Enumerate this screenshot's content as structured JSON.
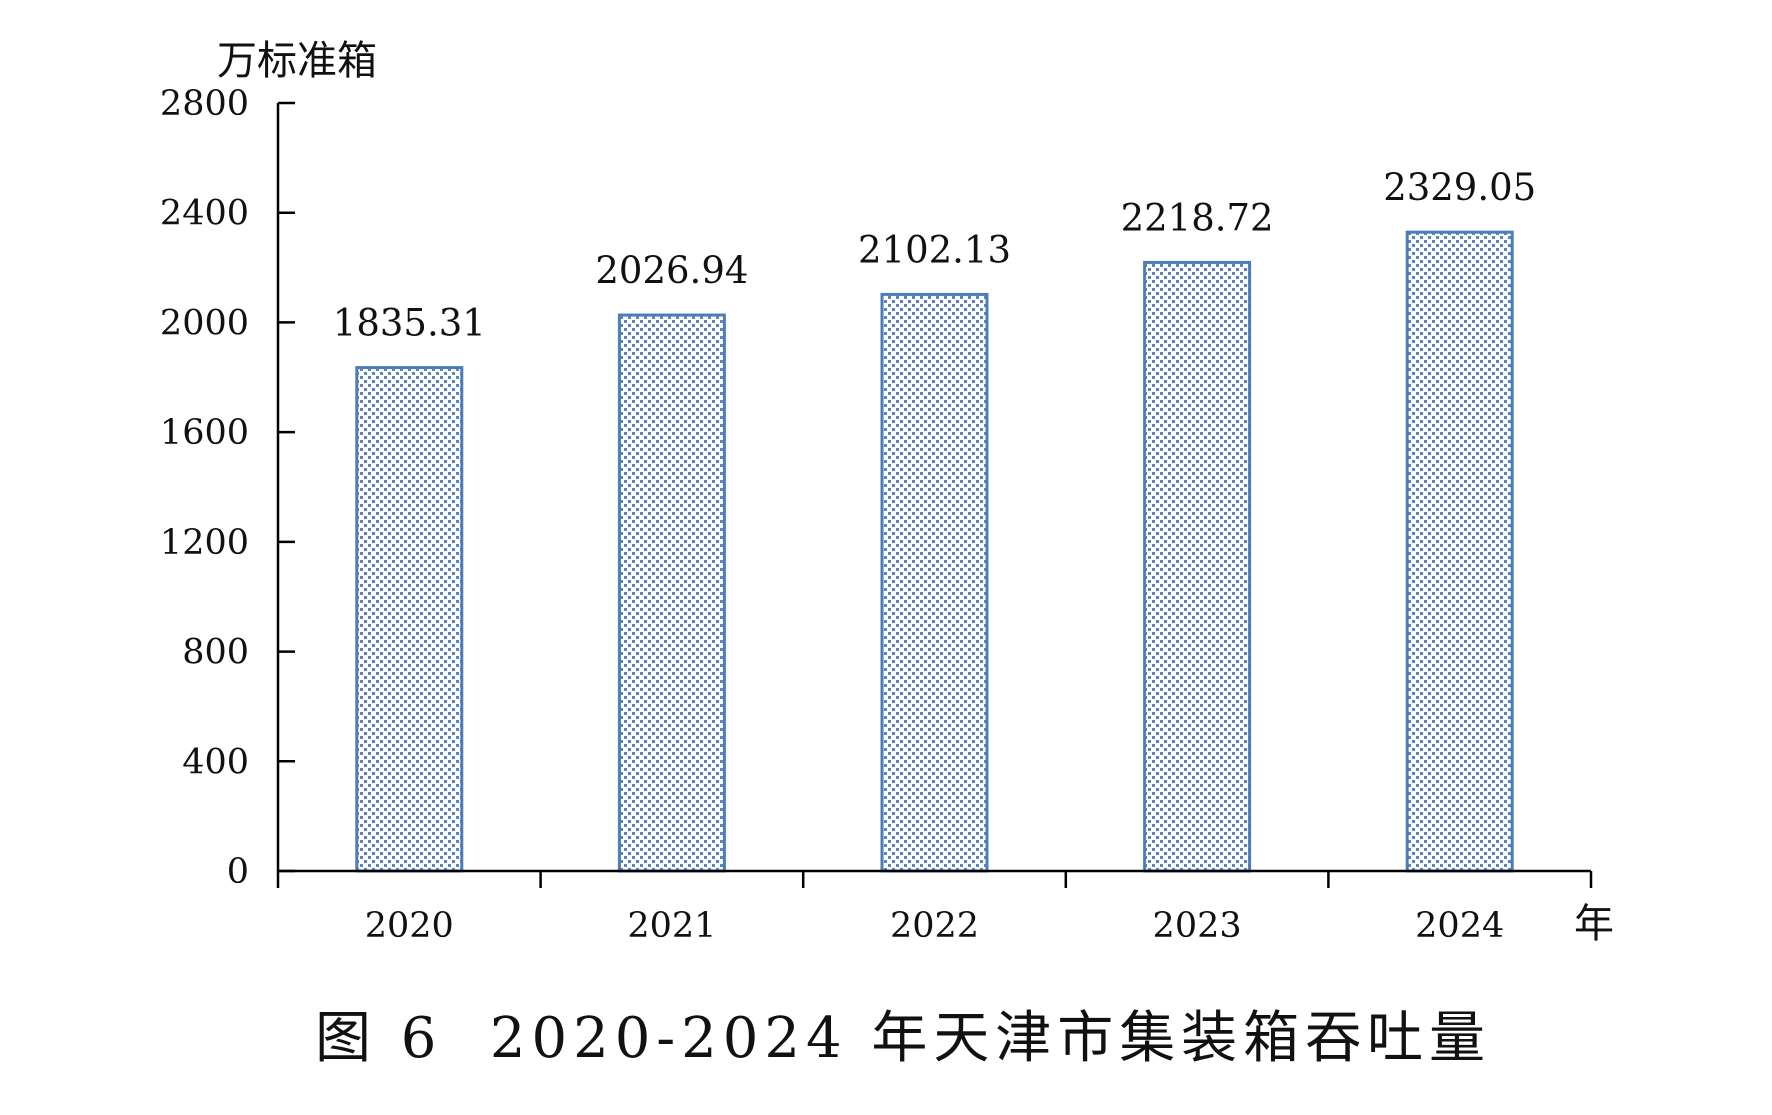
{
  "chart_data": {
    "type": "bar",
    "title": "图 6  2020-2024 年天津市集装箱吞吐量",
    "ylabel": "万标准箱",
    "xlabel": "年",
    "categories": [
      "2020",
      "2021",
      "2022",
      "2023",
      "2024"
    ],
    "values": [
      1835.31,
      2026.94,
      2102.13,
      2218.72,
      2329.05
    ],
    "ylim": [
      0,
      2800
    ],
    "yticks": [
      0,
      400,
      800,
      1200,
      1600,
      2000,
      2400,
      2800
    ],
    "grid": false,
    "colors": {
      "bar_stroke": "#4a7dba",
      "bar_pattern": "#5b86c2",
      "axis": "#000000"
    }
  }
}
